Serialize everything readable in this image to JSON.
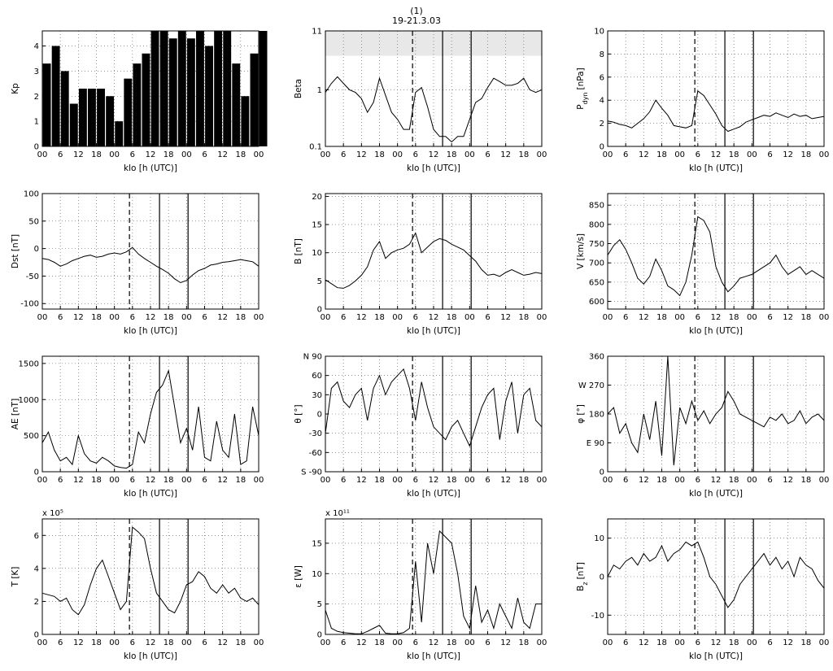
{
  "figure": {
    "number": "(1)",
    "date_range": "19-21.3.03"
  },
  "common_x": {
    "xlabel": "klo [h (UTC)]",
    "tick_labels": [
      "00",
      "6",
      "12",
      "18",
      "00",
      "6",
      "12",
      "18",
      "00",
      "6",
      "12",
      "18",
      "00"
    ],
    "range_hours": [
      0,
      72
    ],
    "dashed_marker_hour": 29,
    "solid_marker_hours": [
      39,
      48.5
    ]
  },
  "chart_data": [
    {
      "id": "kp",
      "type": "bar",
      "ylabel": "Kp",
      "ylim": [
        0,
        4.6
      ],
      "yticks": [
        0,
        1,
        2,
        3,
        4
      ],
      "yticklabels": [
        "0",
        "1",
        "2",
        "3",
        "4"
      ],
      "bar_hours": 3,
      "values": [
        3.3,
        4,
        3,
        1.7,
        2.3,
        2.3,
        2.3,
        2,
        1,
        2.7,
        3.3,
        3.7,
        4.6,
        4.6,
        4.3,
        4.6,
        4.3,
        4.6,
        4,
        4.6,
        4.6,
        3.3,
        2,
        3.7,
        4.6
      ],
      "markers": false
    },
    {
      "id": "beta",
      "type": "line",
      "ylabel": "Beta",
      "ylog": true,
      "ylim": [
        0.1,
        11
      ],
      "yticks": [
        0.1,
        1,
        11
      ],
      "yticklabels": [
        "0.1",
        "1",
        "11"
      ],
      "shaded_above": 4,
      "x": [
        0,
        2,
        4,
        6,
        8,
        10,
        12,
        14,
        16,
        18,
        20,
        22,
        24,
        26,
        28,
        30,
        32,
        34,
        36,
        38,
        40,
        42,
        44,
        46,
        48,
        50,
        52,
        54,
        56,
        58,
        60,
        62,
        64,
        66,
        68,
        70,
        72
      ],
      "y": [
        0.9,
        1.3,
        1.7,
        1.3,
        1.0,
        0.9,
        0.7,
        0.4,
        0.6,
        1.6,
        0.8,
        0.4,
        0.3,
        0.2,
        0.2,
        0.9,
        1.1,
        0.5,
        0.2,
        0.15,
        0.15,
        0.12,
        0.15,
        0.15,
        0.3,
        0.6,
        0.7,
        1.1,
        1.6,
        1.4,
        1.2,
        1.2,
        1.3,
        1.6,
        1.0,
        0.9,
        1.0
      ],
      "markers": true
    },
    {
      "id": "pdyn",
      "type": "line",
      "ylabel": "P",
      "ylabel_sub": "dyn",
      "ylabel_unit": "[nPa]",
      "ylim": [
        0,
        10
      ],
      "yticks": [
        0,
        2,
        4,
        6,
        8,
        10
      ],
      "yticklabels": [
        "0",
        "2",
        "4",
        "6",
        "8",
        "10"
      ],
      "x": [
        0,
        2,
        4,
        6,
        8,
        10,
        12,
        14,
        16,
        18,
        20,
        22,
        24,
        26,
        28,
        30,
        32,
        34,
        36,
        38,
        40,
        42,
        44,
        46,
        48,
        50,
        52,
        54,
        56,
        58,
        60,
        62,
        64,
        66,
        68,
        70,
        72
      ],
      "y": [
        2.2,
        2.1,
        1.9,
        1.8,
        1.6,
        2.0,
        2.4,
        3.0,
        4.0,
        3.3,
        2.7,
        1.8,
        1.7,
        1.6,
        1.8,
        4.8,
        4.4,
        3.6,
        2.8,
        1.8,
        1.3,
        1.5,
        1.7,
        2.1,
        2.3,
        2.5,
        2.7,
        2.6,
        2.9,
        2.7,
        2.5,
        2.8,
        2.6,
        2.7,
        2.4,
        2.5,
        2.6
      ],
      "markers": true
    },
    {
      "id": "dst",
      "type": "line",
      "ylabel": "Dst [nT]",
      "ylim": [
        -110,
        100
      ],
      "yticks": [
        -100,
        -50,
        0,
        50,
        100
      ],
      "yticklabels": [
        "-100",
        "-50",
        "0",
        "50",
        "100"
      ],
      "x": [
        0,
        2,
        4,
        6,
        8,
        10,
        12,
        14,
        16,
        18,
        20,
        22,
        24,
        26,
        28,
        30,
        32,
        34,
        36,
        38,
        40,
        42,
        44,
        46,
        48,
        50,
        52,
        54,
        56,
        58,
        60,
        62,
        64,
        66,
        68,
        70,
        72
      ],
      "y": [
        -18,
        -20,
        -25,
        -32,
        -28,
        -22,
        -18,
        -14,
        -12,
        -16,
        -14,
        -10,
        -8,
        -10,
        -6,
        2,
        -10,
        -18,
        -25,
        -32,
        -38,
        -45,
        -55,
        -62,
        -58,
        -48,
        -40,
        -36,
        -30,
        -28,
        -25,
        -24,
        -22,
        -20,
        -22,
        -24,
        -32
      ],
      "markers": true
    },
    {
      "id": "b",
      "type": "line",
      "ylabel": "B [nT]",
      "ylim": [
        0,
        20.5
      ],
      "yticks": [
        0,
        5,
        10,
        15,
        20
      ],
      "yticklabels": [
        "0",
        "5",
        "10",
        "15",
        "20"
      ],
      "x": [
        0,
        2,
        4,
        6,
        8,
        10,
        12,
        14,
        16,
        18,
        20,
        22,
        24,
        26,
        28,
        30,
        32,
        34,
        36,
        38,
        40,
        42,
        44,
        46,
        48,
        50,
        52,
        54,
        56,
        58,
        60,
        62,
        64,
        66,
        68,
        70,
        72
      ],
      "y": [
        5.2,
        4.5,
        3.8,
        3.7,
        4.2,
        5.0,
        6.0,
        7.5,
        10.5,
        12.0,
        9.0,
        10.0,
        10.5,
        10.8,
        11.5,
        13.5,
        10.0,
        11.0,
        12.0,
        12.5,
        12.2,
        11.5,
        11.0,
        10.5,
        9.5,
        8.5,
        7.0,
        6.0,
        6.2,
        5.8,
        6.5,
        7.0,
        6.5,
        6.0,
        6.2,
        6.5,
        6.3
      ],
      "markers": true
    },
    {
      "id": "v",
      "type": "line",
      "ylabel": "V [km/s]",
      "ylim": [
        580,
        880
      ],
      "yticks": [
        600,
        650,
        700,
        750,
        800,
        850
      ],
      "yticklabels": [
        "600",
        "650",
        "700",
        "750",
        "800",
        "850"
      ],
      "x": [
        0,
        2,
        4,
        6,
        8,
        10,
        12,
        14,
        16,
        18,
        20,
        22,
        24,
        26,
        28,
        30,
        32,
        34,
        36,
        38,
        40,
        42,
        44,
        46,
        48,
        50,
        52,
        54,
        56,
        58,
        60,
        62,
        64,
        66,
        68,
        70,
        72
      ],
      "y": [
        720,
        745,
        760,
        735,
        700,
        660,
        645,
        665,
        710,
        680,
        640,
        630,
        615,
        650,
        720,
        820,
        810,
        780,
        690,
        650,
        625,
        640,
        660,
        665,
        670,
        680,
        690,
        700,
        720,
        690,
        670,
        680,
        690,
        670,
        680,
        670,
        660
      ],
      "markers": true
    },
    {
      "id": "ae",
      "type": "line",
      "ylabel": "AE [nT]",
      "ylim": [
        0,
        1600
      ],
      "yticks": [
        0,
        500,
        1000,
        1500
      ],
      "yticklabels": [
        "0",
        "500",
        "1000",
        "1500"
      ],
      "x": [
        0,
        2,
        4,
        6,
        8,
        10,
        12,
        14,
        16,
        18,
        20,
        22,
        24,
        26,
        28,
        30,
        32,
        34,
        36,
        38,
        40,
        42,
        44,
        46,
        48,
        50,
        52,
        54,
        56,
        58,
        60,
        62,
        64,
        66,
        68,
        70,
        72
      ],
      "y": [
        400,
        550,
        300,
        150,
        200,
        100,
        500,
        250,
        150,
        120,
        200,
        150,
        80,
        60,
        50,
        100,
        550,
        400,
        800,
        1100,
        1200,
        1400,
        900,
        400,
        600,
        300,
        900,
        200,
        150,
        700,
        300,
        200,
        800,
        100,
        150,
        900,
        500
      ],
      "markers": true
    },
    {
      "id": "theta",
      "type": "line",
      "ylabel": "θ [°]",
      "ylim": [
        -90,
        90
      ],
      "yticks": [
        -90,
        -60,
        -30,
        0,
        30,
        60,
        90
      ],
      "yticklabels": [
        "S -90",
        "-60",
        "-30",
        "0",
        "30",
        "60",
        "N 90"
      ],
      "x": [
        0,
        2,
        4,
        6,
        8,
        10,
        12,
        14,
        16,
        18,
        20,
        22,
        24,
        26,
        28,
        30,
        32,
        34,
        36,
        38,
        40,
        42,
        44,
        46,
        48,
        50,
        52,
        54,
        56,
        58,
        60,
        62,
        64,
        66,
        68,
        70,
        72
      ],
      "y": [
        -30,
        40,
        50,
        20,
        10,
        30,
        40,
        -10,
        40,
        60,
        30,
        50,
        60,
        70,
        40,
        -10,
        50,
        10,
        -20,
        -30,
        -40,
        -20,
        -10,
        -30,
        -50,
        -20,
        10,
        30,
        40,
        -40,
        20,
        50,
        -30,
        30,
        40,
        -10,
        -20
      ],
      "markers": true
    },
    {
      "id": "phi",
      "type": "line",
      "ylabel": "φ [°]",
      "ylim": [
        0,
        360
      ],
      "yticks": [
        0,
        90,
        180,
        270,
        360
      ],
      "yticklabels": [
        "0",
        "E 90",
        "180",
        "W 270",
        "360"
      ],
      "x": [
        0,
        2,
        4,
        6,
        8,
        10,
        12,
        14,
        16,
        18,
        20,
        22,
        24,
        26,
        28,
        30,
        32,
        34,
        36,
        38,
        40,
        42,
        44,
        46,
        48,
        50,
        52,
        54,
        56,
        58,
        60,
        62,
        64,
        66,
        68,
        70,
        72
      ],
      "y": [
        180,
        200,
        120,
        150,
        90,
        60,
        180,
        100,
        220,
        50,
        360,
        20,
        200,
        150,
        220,
        160,
        190,
        150,
        180,
        200,
        250,
        220,
        180,
        170,
        160,
        150,
        140,
        170,
        160,
        180,
        150,
        160,
        190,
        150,
        170,
        180,
        160
      ],
      "markers": true
    },
    {
      "id": "t",
      "type": "line",
      "ylabel": "T [K]",
      "scale_note": "x 10⁵",
      "ylim": [
        0,
        7
      ],
      "yticks": [
        0,
        2,
        4,
        6
      ],
      "yticklabels": [
        "0",
        "2",
        "4",
        "6"
      ],
      "x": [
        0,
        2,
        4,
        6,
        8,
        10,
        12,
        14,
        16,
        18,
        20,
        22,
        24,
        26,
        28,
        30,
        32,
        34,
        36,
        38,
        40,
        42,
        44,
        46,
        48,
        50,
        52,
        54,
        56,
        58,
        60,
        62,
        64,
        66,
        68,
        70,
        72
      ],
      "y": [
        2.5,
        2.4,
        2.3,
        2.0,
        2.2,
        1.5,
        1.2,
        1.8,
        3.0,
        4.0,
        4.5,
        3.5,
        2.5,
        1.5,
        2.0,
        6.5,
        6.2,
        5.8,
        4.0,
        2.5,
        2.0,
        1.5,
        1.3,
        2.0,
        3.0,
        3.2,
        3.8,
        3.5,
        2.8,
        2.5,
        3.0,
        2.5,
        2.8,
        2.2,
        2.0,
        2.2,
        1.8
      ],
      "markers": true
    },
    {
      "id": "eps",
      "type": "line",
      "ylabel": "ε [W]",
      "scale_note": "x 10¹¹",
      "ylim": [
        0,
        19
      ],
      "yticks": [
        0,
        5,
        10,
        15
      ],
      "yticklabels": [
        "0",
        "5",
        "10",
        "15"
      ],
      "x": [
        0,
        2,
        4,
        6,
        8,
        10,
        12,
        14,
        16,
        18,
        20,
        22,
        24,
        26,
        28,
        30,
        32,
        34,
        36,
        38,
        40,
        42,
        44,
        46,
        48,
        50,
        52,
        54,
        56,
        58,
        60,
        62,
        64,
        66,
        68,
        70,
        72
      ],
      "y": [
        4,
        1,
        0.5,
        0.3,
        0.2,
        0.1,
        0.1,
        0.5,
        1,
        1.5,
        0.2,
        0.1,
        0.1,
        0.3,
        1,
        12,
        2,
        15,
        10,
        17,
        16,
        15,
        10,
        3,
        1,
        8,
        2,
        4,
        1,
        5,
        3,
        1,
        6,
        2,
        1,
        5,
        5
      ],
      "markers": true
    },
    {
      "id": "bz",
      "type": "line",
      "ylabel": "B",
      "ylabel_sub": "z",
      "ylabel_unit": "[nT]",
      "ylim": [
        -15,
        15
      ],
      "yticks": [
        -10,
        0,
        10
      ],
      "yticklabels": [
        "-10",
        "0",
        "10"
      ],
      "x": [
        0,
        2,
        4,
        6,
        8,
        10,
        12,
        14,
        16,
        18,
        20,
        22,
        24,
        26,
        28,
        30,
        32,
        34,
        36,
        38,
        40,
        42,
        44,
        46,
        48,
        50,
        52,
        54,
        56,
        58,
        60,
        62,
        64,
        66,
        68,
        70,
        72
      ],
      "y": [
        0,
        3,
        2,
        4,
        5,
        3,
        6,
        4,
        5,
        8,
        4,
        6,
        7,
        9,
        8,
        9,
        5,
        0,
        -2,
        -5,
        -8,
        -6,
        -2,
        0,
        2,
        4,
        6,
        3,
        5,
        2,
        4,
        0,
        5,
        3,
        2,
        -1,
        -3
      ],
      "markers": true
    }
  ]
}
